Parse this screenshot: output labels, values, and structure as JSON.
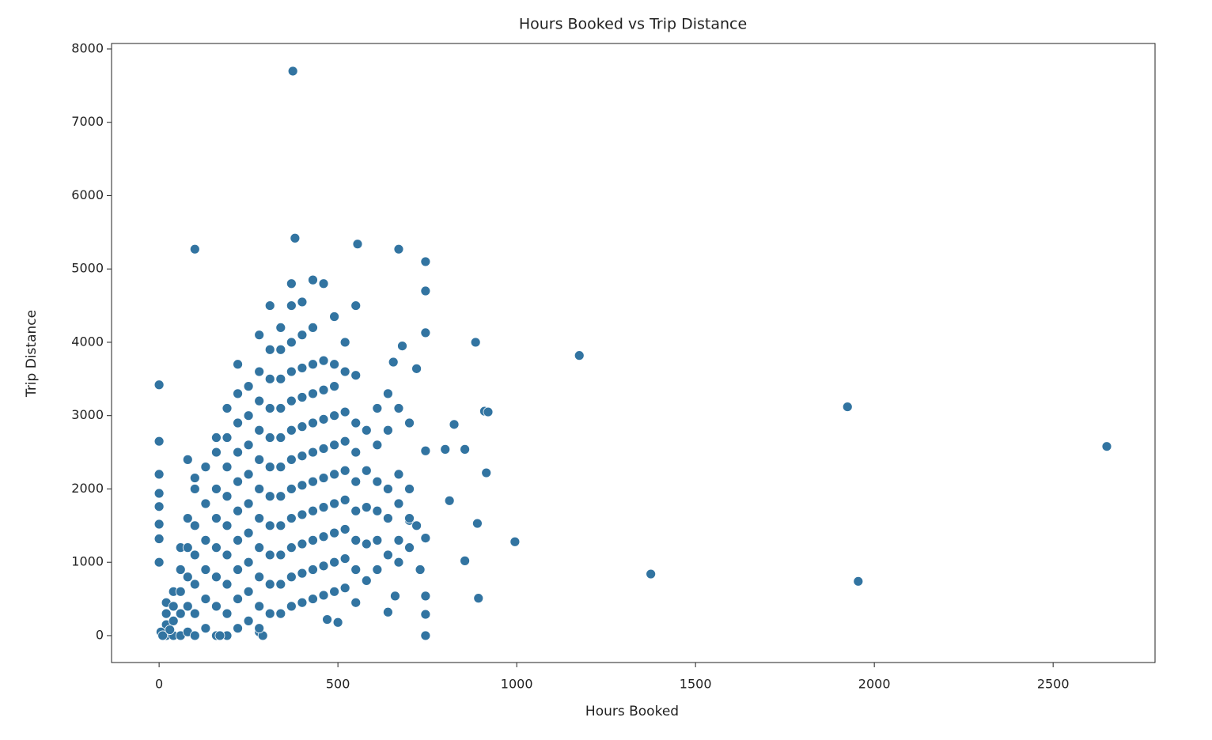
{
  "chart_data": {
    "type": "scatter",
    "title": "Hours Booked vs Trip Distance",
    "x_label": "Hours Booked",
    "y_label": "Trip Distance",
    "color": "#3274a1",
    "xlim": [
      -133,
      2785
    ],
    "ylim": [
      -367,
      8075
    ],
    "xticks": [
      0,
      500,
      1000,
      1500,
      2000,
      2500
    ],
    "yticks": [
      0,
      1000,
      2000,
      3000,
      4000,
      5000,
      6000,
      7000,
      8000
    ],
    "x": [
      374,
      100,
      380,
      555,
      670,
      745,
      745,
      745,
      745,
      745,
      745,
      745,
      745,
      885,
      1175,
      1925,
      2650,
      1375,
      1955,
      995,
      910,
      920,
      915,
      890,
      893,
      855,
      855,
      825,
      800,
      812,
      720,
      700,
      720,
      730,
      655,
      680,
      640,
      660,
      0,
      0,
      0,
      0,
      0,
      0,
      0,
      0,
      20,
      20,
      20,
      20,
      40,
      40,
      40,
      40,
      60,
      60,
      60,
      60,
      60,
      80,
      80,
      80,
      80,
      80,
      80,
      100,
      100,
      100,
      100,
      100,
      100,
      100,
      130,
      130,
      130,
      130,
      130,
      130,
      160,
      160,
      160,
      160,
      160,
      160,
      160,
      160,
      190,
      190,
      190,
      190,
      190,
      190,
      190,
      190,
      190,
      220,
      220,
      220,
      220,
      220,
      220,
      220,
      220,
      220,
      220,
      250,
      250,
      250,
      250,
      250,
      250,
      250,
      250,
      250,
      280,
      280,
      280,
      280,
      280,
      280,
      280,
      280,
      280,
      280,
      280,
      310,
      310,
      310,
      310,
      310,
      310,
      310,
      310,
      310,
      310,
      310,
      340,
      340,
      340,
      340,
      340,
      340,
      340,
      340,
      340,
      340,
      340,
      370,
      370,
      370,
      370,
      370,
      370,
      370,
      370,
      370,
      370,
      370,
      370,
      400,
      400,
      400,
      400,
      400,
      400,
      400,
      400,
      400,
      400,
      400,
      430,
      430,
      430,
      430,
      430,
      430,
      430,
      430,
      430,
      430,
      430,
      460,
      460,
      460,
      460,
      460,
      460,
      460,
      460,
      460,
      460,
      490,
      490,
      490,
      490,
      490,
      490,
      490,
      490,
      490,
      490,
      520,
      520,
      520,
      520,
      520,
      520,
      520,
      520,
      520,
      550,
      550,
      550,
      550,
      550,
      550,
      550,
      550,
      550,
      580,
      580,
      580,
      580,
      580,
      610,
      610,
      610,
      610,
      610,
      610,
      640,
      640,
      640,
      640,
      640,
      670,
      670,
      670,
      670,
      670,
      700,
      700,
      700,
      700,
      5,
      10,
      30,
      170,
      290,
      280,
      470,
      500
    ],
    "values": [
      7698,
      5270,
      5420,
      5340,
      5270,
      5100,
      4700,
      4130,
      2520,
      1330,
      540,
      290,
      0,
      4000,
      3820,
      3120,
      2580,
      840,
      740,
      1280,
      3060,
      3050,
      2220,
      1530,
      510,
      1020,
      2540,
      2880,
      2540,
      1840,
      3640,
      1570,
      1500,
      900,
      3730,
      3950,
      320,
      540,
      3420,
      2650,
      2200,
      1940,
      1760,
      1520,
      1320,
      1000,
      0,
      150,
      300,
      450,
      0,
      200,
      400,
      600,
      0,
      300,
      600,
      900,
      1200,
      50,
      400,
      800,
      1200,
      1600,
      2400,
      0,
      300,
      700,
      1100,
      1500,
      2000,
      2150,
      100,
      500,
      900,
      1300,
      1800,
      2300,
      0,
      400,
      800,
      1200,
      1600,
      2000,
      2500,
      2700,
      0,
      300,
      700,
      1100,
      1500,
      1900,
      2300,
      2700,
      3100,
      100,
      500,
      900,
      1300,
      1700,
      2100,
      2500,
      2900,
      3300,
      3700,
      200,
      600,
      1000,
      1400,
      1800,
      2200,
      2600,
      3000,
      3400,
      50,
      400,
      800,
      1200,
      1600,
      2000,
      2400,
      2800,
      3200,
      3600,
      4100,
      300,
      700,
      1100,
      1500,
      1900,
      2300,
      2700,
      3100,
      3500,
      3900,
      4500,
      300,
      700,
      1100,
      1500,
      1900,
      2300,
      2700,
      3100,
      3500,
      3900,
      4200,
      400,
      800,
      1200,
      1600,
      2000,
      2400,
      2800,
      3200,
      3600,
      4000,
      4500,
      4800,
      450,
      850,
      1250,
      1650,
      2050,
      2450,
      2850,
      3250,
      3650,
      4100,
      4550,
      500,
      900,
      1300,
      1700,
      2100,
      2500,
      2900,
      3300,
      3700,
      4200,
      4850,
      550,
      950,
      1350,
      1750,
      2150,
      2550,
      2950,
      3350,
      3750,
      4800,
      600,
      1000,
      1400,
      1800,
      2200,
      2600,
      3000,
      3400,
      3700,
      4350,
      650,
      1050,
      1450,
      1850,
      2250,
      2650,
      3050,
      3600,
      4000,
      450,
      900,
      1300,
      1700,
      2100,
      2500,
      2900,
      3550,
      4500,
      750,
      1250,
      1750,
      2250,
      2800,
      900,
      1300,
      1700,
      2100,
      2600,
      3100,
      1100,
      1600,
      2000,
      2800,
      3300,
      1000,
      1300,
      1800,
      2200,
      3100,
      1200,
      1600,
      2000,
      2900,
      50,
      0,
      80,
      0,
      0,
      100,
      220,
      180
    ]
  }
}
